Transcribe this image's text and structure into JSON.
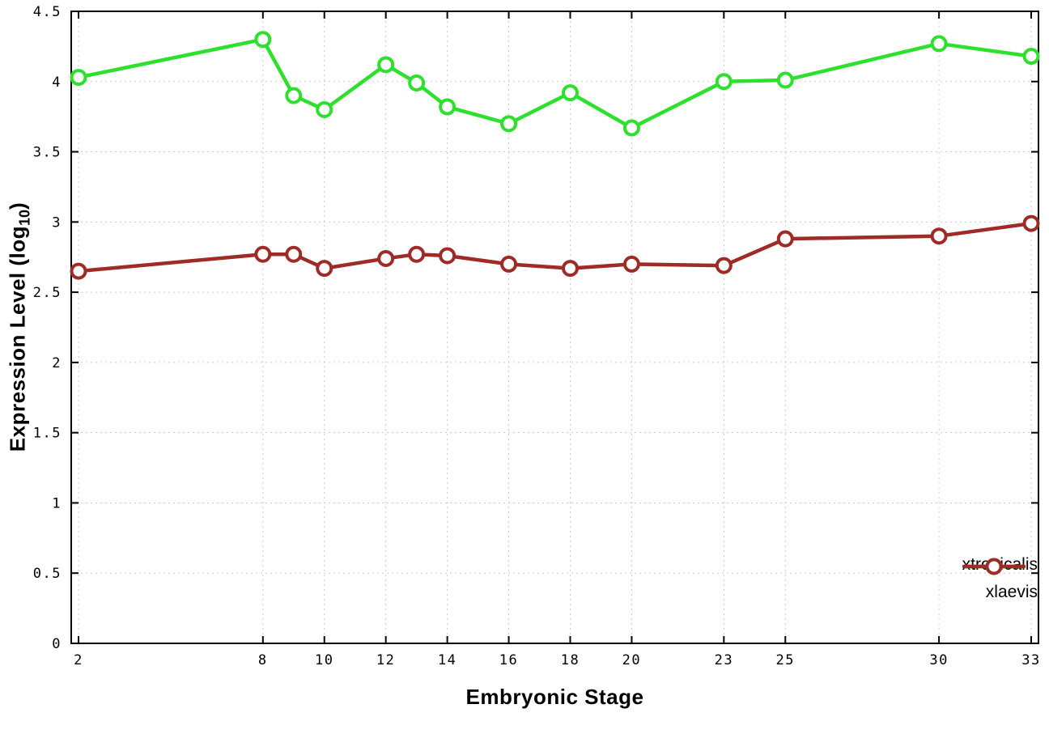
{
  "chart_data": {
    "type": "line",
    "title": "",
    "xlabel": "Embryonic Stage",
    "ylabel": "Expression Level (log10)",
    "ylabel_main": "Expression Level (log",
    "ylabel_sub": "10",
    "ylabel_close": ")",
    "xlim": [
      2,
      33
    ],
    "ylim": [
      0,
      4.5
    ],
    "x_ticks": [
      2,
      8,
      10,
      12,
      14,
      16,
      18,
      20,
      23,
      25,
      30,
      33
    ],
    "y_ticks": [
      0,
      0.5,
      1,
      1.5,
      2,
      2.5,
      3,
      3.5,
      4,
      4.5
    ],
    "grid": true,
    "legend_position": "bottom-right",
    "background_color": "#ffffff",
    "border_color": "#000000",
    "grid_color": "#cccccc",
    "series": [
      {
        "name": "xtropicalis",
        "color": "#2ee02e",
        "marker": "open-circle",
        "x": [
          2,
          8,
          9,
          10,
          12,
          13,
          14,
          16,
          18,
          20,
          23,
          25,
          30,
          33
        ],
        "y": [
          4.03,
          4.3,
          3.9,
          3.8,
          4.12,
          3.99,
          3.82,
          3.7,
          3.92,
          3.67,
          4.0,
          4.01,
          4.27,
          4.18
        ]
      },
      {
        "name": "xlaevis",
        "color": "#9e2b25",
        "marker": "open-circle",
        "x": [
          2,
          8,
          9,
          10,
          12,
          13,
          14,
          16,
          18,
          20,
          23,
          25,
          30,
          33
        ],
        "y": [
          2.65,
          2.77,
          2.77,
          2.67,
          2.74,
          2.77,
          2.76,
          2.7,
          2.67,
          2.7,
          2.69,
          2.88,
          2.9,
          2.99
        ]
      }
    ]
  }
}
